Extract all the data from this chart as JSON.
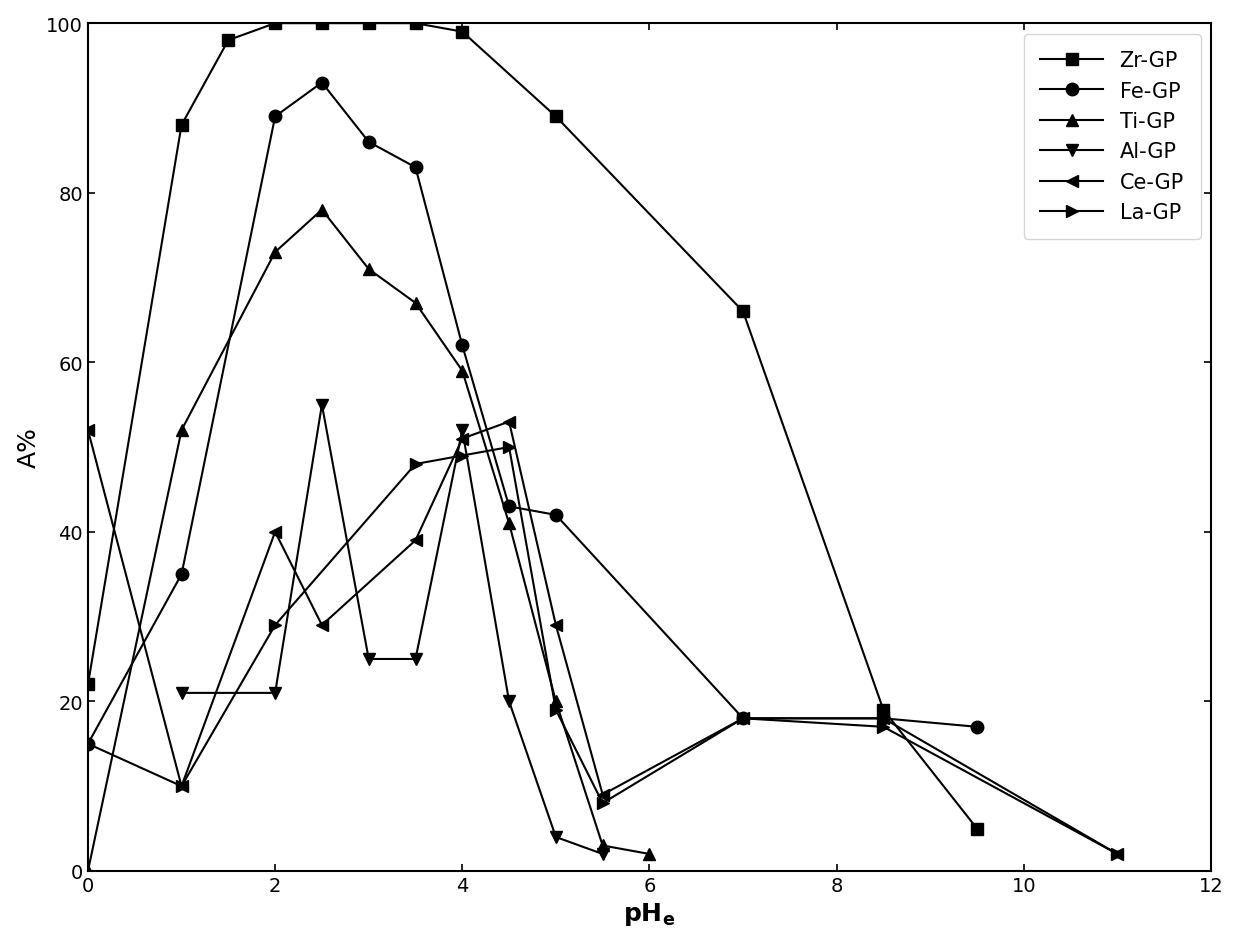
{
  "title": "",
  "xlabel": "pH$_\\mathbf{e}$",
  "ylabel": "A%",
  "xlim": [
    0,
    12
  ],
  "ylim": [
    0,
    100
  ],
  "xticks": [
    0,
    2,
    4,
    6,
    8,
    10,
    12
  ],
  "yticks": [
    0,
    20,
    40,
    60,
    80,
    100
  ],
  "series": [
    {
      "label": "Zr-GP",
      "marker": "s",
      "x": [
        0,
        1,
        1.5,
        2,
        2.5,
        3,
        3.5,
        4,
        5,
        7,
        8.5,
        9.5
      ],
      "y": [
        22,
        88,
        98,
        100,
        100,
        100,
        100,
        99,
        89,
        66,
        19,
        5
      ]
    },
    {
      "label": "Fe-GP",
      "marker": "o",
      "x": [
        0,
        1,
        2,
        2.5,
        3,
        3.5,
        4,
        4.5,
        5,
        7,
        8.5,
        9.5
      ],
      "y": [
        15,
        35,
        89,
        93,
        86,
        83,
        62,
        43,
        42,
        18,
        18,
        17
      ]
    },
    {
      "label": "Ti-GP",
      "marker": "^",
      "x": [
        0,
        1,
        2,
        2.5,
        3,
        3.5,
        4,
        4.5,
        5,
        5.5,
        6
      ],
      "y": [
        0,
        52,
        73,
        78,
        71,
        67,
        59,
        41,
        20,
        3,
        2
      ]
    },
    {
      "label": "Al-GP",
      "marker": "v",
      "x": [
        1,
        2,
        2.5,
        3,
        3.5,
        4,
        4.5,
        5,
        5.5
      ],
      "y": [
        21,
        21,
        55,
        25,
        25,
        52,
        20,
        4,
        2
      ]
    },
    {
      "label": "Ce-GP",
      "marker": "<",
      "x": [
        0,
        1,
        2,
        2.5,
        3.5,
        4,
        4.5,
        5,
        5.5,
        7,
        8.5,
        11
      ],
      "y": [
        52,
        10,
        40,
        29,
        39,
        51,
        53,
        29,
        9,
        18,
        18,
        2
      ]
    },
    {
      "label": "La-GP",
      "marker": ">",
      "x": [
        0,
        1,
        2,
        3.5,
        4,
        4.5,
        5,
        5.5,
        7,
        8.5,
        11
      ],
      "y": [
        15,
        10,
        29,
        48,
        49,
        50,
        19,
        8,
        18,
        17,
        2
      ]
    }
  ],
  "line_color": "black",
  "marker_color": "black",
  "marker_size": 9,
  "line_width": 1.5,
  "legend_fontsize": 15,
  "axis_label_fontsize": 18,
  "tick_fontsize": 14
}
